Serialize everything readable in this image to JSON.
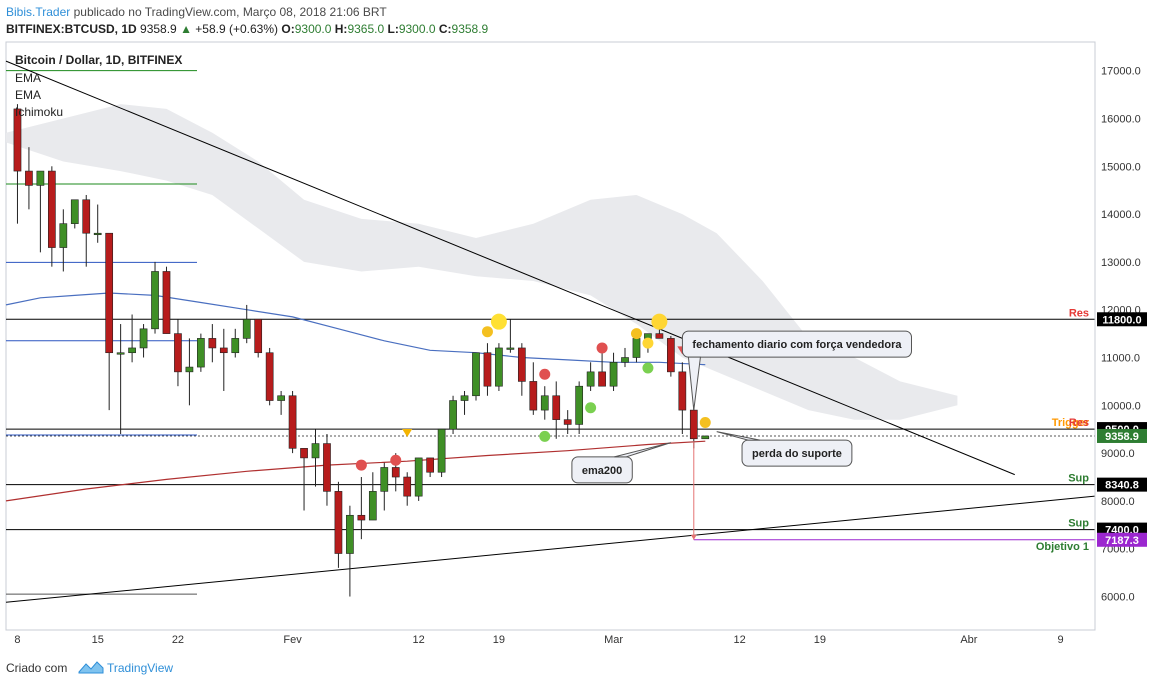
{
  "header": {
    "brand": "Bibis.Trader",
    "published": "publicado no TradingView.com, Março 08, 2018 21:06 BRT",
    "symbol": "BITFINEX:BTCUSD, 1D",
    "price": "9358.9",
    "change": "+58.9 (+0.63%)",
    "o_label": "O:",
    "o_val": "9300.0",
    "h_label": "H:",
    "h_val": "9365.0",
    "l_label": "L:",
    "l_val": "9300.0",
    "c_label": "C:",
    "c_val": "9358.9"
  },
  "footer": {
    "created": "Criado com",
    "logo_name": "TradingView"
  },
  "chart_data": {
    "type": "candlestick",
    "title": "Bitcoin / Dollar, 1D, BITFINEX",
    "indicators": [
      "EMA",
      "EMA",
      "Ichimoku"
    ],
    "ylim": [
      5300,
      17600
    ],
    "xlim": [
      "2018-01-07",
      "2018-04-12"
    ],
    "y_ticks": [
      6000,
      7000,
      8000,
      9000,
      10000,
      11000,
      12000,
      13000,
      14000,
      15000,
      16000,
      17000
    ],
    "y_tick_labels": [
      "6000.0",
      "7000.0",
      "8000.0",
      "9000.0",
      "10000.0",
      "11000.0",
      "12000.0",
      "13000.0",
      "14000.0",
      "15000.0",
      "16000.0",
      "17000.0"
    ],
    "x_ticks": [
      {
        "date": "2018-01-08",
        "label": "8"
      },
      {
        "date": "2018-01-15",
        "label": "15"
      },
      {
        "date": "2018-01-22",
        "label": "22"
      },
      {
        "date": "2018-02-01",
        "label": "Fev"
      },
      {
        "date": "2018-02-12",
        "label": "12"
      },
      {
        "date": "2018-02-19",
        "label": "19"
      },
      {
        "date": "2018-03-01",
        "label": "Mar"
      },
      {
        "date": "2018-03-12",
        "label": "12"
      },
      {
        "date": "2018-03-19",
        "label": "19"
      },
      {
        "date": "2018-04-01",
        "label": "Abr"
      },
      {
        "date": "2018-04-09",
        "label": "9"
      }
    ],
    "candles": [
      {
        "d": "2018-01-08",
        "o": 16200,
        "h": 16300,
        "l": 13800,
        "c": 14900
      },
      {
        "d": "2018-01-09",
        "o": 14900,
        "h": 15400,
        "l": 14100,
        "c": 14600
      },
      {
        "d": "2018-01-10",
        "o": 14600,
        "h": 14900,
        "l": 13200,
        "c": 14900
      },
      {
        "d": "2018-01-11",
        "o": 14900,
        "h": 15000,
        "l": 12900,
        "c": 13300
      },
      {
        "d": "2018-01-12",
        "o": 13300,
        "h": 14100,
        "l": 12800,
        "c": 13800
      },
      {
        "d": "2018-01-13",
        "o": 13800,
        "h": 14300,
        "l": 13700,
        "c": 14300
      },
      {
        "d": "2018-01-14",
        "o": 14300,
        "h": 14400,
        "l": 12900,
        "c": 13600
      },
      {
        "d": "2018-01-15",
        "o": 13600,
        "h": 14200,
        "l": 13400,
        "c": 13600
      },
      {
        "d": "2018-01-16",
        "o": 13600,
        "h": 13600,
        "l": 9900,
        "c": 11100
      },
      {
        "d": "2018-01-17",
        "o": 11100,
        "h": 11700,
        "l": 9400,
        "c": 11100
      },
      {
        "d": "2018-01-18",
        "o": 11100,
        "h": 11900,
        "l": 10900,
        "c": 11200
      },
      {
        "d": "2018-01-19",
        "o": 11200,
        "h": 11700,
        "l": 11000,
        "c": 11600
      },
      {
        "d": "2018-01-20",
        "o": 11600,
        "h": 13000,
        "l": 11500,
        "c": 12800
      },
      {
        "d": "2018-01-21",
        "o": 12800,
        "h": 12900,
        "l": 11500,
        "c": 11500
      },
      {
        "d": "2018-01-22",
        "o": 11500,
        "h": 11800,
        "l": 10400,
        "c": 10700
      },
      {
        "d": "2018-01-23",
        "o": 10700,
        "h": 11400,
        "l": 10000,
        "c": 10800
      },
      {
        "d": "2018-01-24",
        "o": 10800,
        "h": 11500,
        "l": 10700,
        "c": 11400
      },
      {
        "d": "2018-01-25",
        "o": 11400,
        "h": 11700,
        "l": 10900,
        "c": 11200
      },
      {
        "d": "2018-01-26",
        "o": 11200,
        "h": 11600,
        "l": 10300,
        "c": 11100
      },
      {
        "d": "2018-01-27",
        "o": 11100,
        "h": 11600,
        "l": 11000,
        "c": 11400
      },
      {
        "d": "2018-01-28",
        "o": 11400,
        "h": 12100,
        "l": 11300,
        "c": 11800
      },
      {
        "d": "2018-01-29",
        "o": 11800,
        "h": 11800,
        "l": 11000,
        "c": 11100
      },
      {
        "d": "2018-01-30",
        "o": 11100,
        "h": 11200,
        "l": 10000,
        "c": 10100
      },
      {
        "d": "2018-01-31",
        "o": 10100,
        "h": 10300,
        "l": 9800,
        "c": 10200
      },
      {
        "d": "2018-02-01",
        "o": 10200,
        "h": 10300,
        "l": 9000,
        "c": 9100
      },
      {
        "d": "2018-02-02",
        "o": 9100,
        "h": 9100,
        "l": 7800,
        "c": 8900
      },
      {
        "d": "2018-02-03",
        "o": 8900,
        "h": 9500,
        "l": 8300,
        "c": 9200
      },
      {
        "d": "2018-02-04",
        "o": 9200,
        "h": 9400,
        "l": 7900,
        "c": 8200
      },
      {
        "d": "2018-02-05",
        "o": 8200,
        "h": 8400,
        "l": 6600,
        "c": 6900
      },
      {
        "d": "2018-02-06",
        "o": 6900,
        "h": 7900,
        "l": 6000,
        "c": 7700
      },
      {
        "d": "2018-02-07",
        "o": 7700,
        "h": 8500,
        "l": 7200,
        "c": 7600
      },
      {
        "d": "2018-02-08",
        "o": 7600,
        "h": 8600,
        "l": 7600,
        "c": 8200
      },
      {
        "d": "2018-02-09",
        "o": 8200,
        "h": 8800,
        "l": 7800,
        "c": 8700
      },
      {
        "d": "2018-02-10",
        "o": 8700,
        "h": 9000,
        "l": 8200,
        "c": 8500
      },
      {
        "d": "2018-02-11",
        "o": 8500,
        "h": 8600,
        "l": 7900,
        "c": 8100
      },
      {
        "d": "2018-02-12",
        "o": 8100,
        "h": 8900,
        "l": 8000,
        "c": 8900
      },
      {
        "d": "2018-02-13",
        "o": 8900,
        "h": 8900,
        "l": 8500,
        "c": 8600
      },
      {
        "d": "2018-02-14",
        "o": 8600,
        "h": 9500,
        "l": 8500,
        "c": 9500
      },
      {
        "d": "2018-02-15",
        "o": 9500,
        "h": 10200,
        "l": 9400,
        "c": 10100
      },
      {
        "d": "2018-02-16",
        "o": 10100,
        "h": 10300,
        "l": 9800,
        "c": 10200
      },
      {
        "d": "2018-02-17",
        "o": 10200,
        "h": 11100,
        "l": 10100,
        "c": 11100
      },
      {
        "d": "2018-02-18",
        "o": 11100,
        "h": 11300,
        "l": 10200,
        "c": 10400
      },
      {
        "d": "2018-02-19",
        "o": 10400,
        "h": 11300,
        "l": 10300,
        "c": 11200
      },
      {
        "d": "2018-02-20",
        "o": 11200,
        "h": 11800,
        "l": 11100,
        "c": 11200
      },
      {
        "d": "2018-02-21",
        "o": 11200,
        "h": 11300,
        "l": 10200,
        "c": 10500
      },
      {
        "d": "2018-02-22",
        "o": 10500,
        "h": 10900,
        "l": 9800,
        "c": 9900
      },
      {
        "d": "2018-02-23",
        "o": 9900,
        "h": 10400,
        "l": 9700,
        "c": 10200
      },
      {
        "d": "2018-02-24",
        "o": 10200,
        "h": 10500,
        "l": 9300,
        "c": 9700
      },
      {
        "d": "2018-02-25",
        "o": 9700,
        "h": 9900,
        "l": 9400,
        "c": 9600
      },
      {
        "d": "2018-02-26",
        "o": 9600,
        "h": 10500,
        "l": 9400,
        "c": 10400
      },
      {
        "d": "2018-02-27",
        "o": 10400,
        "h": 10900,
        "l": 10300,
        "c": 10700
      },
      {
        "d": "2018-02-28",
        "o": 10700,
        "h": 11100,
        "l": 10400,
        "c": 10400
      },
      {
        "d": "2018-03-01",
        "o": 10400,
        "h": 11100,
        "l": 10300,
        "c": 10900
      },
      {
        "d": "2018-03-02",
        "o": 10900,
        "h": 11200,
        "l": 10800,
        "c": 11000
      },
      {
        "d": "2018-03-03",
        "o": 11000,
        "h": 11500,
        "l": 10900,
        "c": 11400
      },
      {
        "d": "2018-03-04",
        "o": 11400,
        "h": 11500,
        "l": 11100,
        "c": 11500
      },
      {
        "d": "2018-03-05",
        "o": 11500,
        "h": 11700,
        "l": 11400,
        "c": 11400
      },
      {
        "d": "2018-03-06",
        "o": 11400,
        "h": 11450,
        "l": 10600,
        "c": 10700
      },
      {
        "d": "2018-03-07",
        "o": 10700,
        "h": 10900,
        "l": 9400,
        "c": 9900
      },
      {
        "d": "2018-03-08",
        "o": 9900,
        "h": 10100,
        "l": 9100,
        "c": 9300
      },
      {
        "d": "2018-03-09",
        "o": 9300,
        "h": 9365,
        "l": 9300,
        "c": 9358.9
      }
    ],
    "ema_blue": [
      [
        "2018-01-07",
        12100
      ],
      [
        "2018-01-10",
        12250
      ],
      [
        "2018-01-13",
        12300
      ],
      [
        "2018-01-16",
        12350
      ],
      [
        "2018-01-20",
        12300
      ],
      [
        "2018-01-24",
        12150
      ],
      [
        "2018-01-28",
        12000
      ],
      [
        "2018-02-01",
        11850
      ],
      [
        "2018-02-05",
        11600
      ],
      [
        "2018-02-09",
        11350
      ],
      [
        "2018-02-13",
        11150
      ],
      [
        "2018-02-17",
        11100
      ],
      [
        "2018-02-21",
        11000
      ],
      [
        "2018-02-25",
        10950
      ],
      [
        "2018-03-01",
        10900
      ],
      [
        "2018-03-05",
        10900
      ],
      [
        "2018-03-09",
        10850
      ]
    ],
    "ema_red": [
      [
        "2018-01-07",
        8000
      ],
      [
        "2018-01-14",
        8250
      ],
      [
        "2018-01-21",
        8450
      ],
      [
        "2018-01-28",
        8620
      ],
      [
        "2018-02-04",
        8750
      ],
      [
        "2018-02-11",
        8830
      ],
      [
        "2018-02-18",
        8950
      ],
      [
        "2018-02-25",
        9050
      ],
      [
        "2018-03-04",
        9180
      ],
      [
        "2018-03-09",
        9250
      ]
    ],
    "cloud_top": [
      [
        "2018-01-07",
        15700
      ],
      [
        "2018-01-12",
        16000
      ],
      [
        "2018-01-17",
        16300
      ],
      [
        "2018-01-21",
        16200
      ],
      [
        "2018-01-25",
        15700
      ],
      [
        "2018-01-29",
        15100
      ],
      [
        "2018-02-02",
        14300
      ],
      [
        "2018-02-07",
        13900
      ],
      [
        "2018-02-12",
        13800
      ],
      [
        "2018-02-17",
        13500
      ],
      [
        "2018-02-22",
        13800
      ],
      [
        "2018-02-27",
        14300
      ],
      [
        "2018-03-03",
        14400
      ],
      [
        "2018-03-07",
        14000
      ],
      [
        "2018-03-10",
        13600
      ],
      [
        "2018-03-14",
        12600
      ],
      [
        "2018-03-18",
        11400
      ],
      [
        "2018-03-22",
        11000
      ],
      [
        "2018-03-26",
        10500
      ],
      [
        "2018-03-31",
        10200
      ]
    ],
    "cloud_bottom": [
      [
        "2018-01-07",
        15500
      ],
      [
        "2018-01-12",
        15100
      ],
      [
        "2018-01-17",
        14900
      ],
      [
        "2018-01-21",
        14700
      ],
      [
        "2018-01-25",
        14400
      ],
      [
        "2018-01-29",
        13700
      ],
      [
        "2018-02-02",
        13000
      ],
      [
        "2018-02-07",
        12800
      ],
      [
        "2018-02-12",
        12900
      ],
      [
        "2018-02-17",
        12700
      ],
      [
        "2018-02-22",
        12600
      ],
      [
        "2018-02-27",
        12300
      ],
      [
        "2018-03-03",
        11700
      ],
      [
        "2018-03-07",
        11000
      ],
      [
        "2018-03-10",
        10700
      ],
      [
        "2018-03-14",
        10300
      ],
      [
        "2018-03-18",
        9900
      ],
      [
        "2018-03-22",
        9700
      ],
      [
        "2018-03-26",
        9700
      ],
      [
        "2018-03-31",
        10000
      ]
    ],
    "trendlines": [
      {
        "name": "descending",
        "from": [
          "2018-01-07",
          17200
        ],
        "to": [
          "2018-04-05",
          8550
        ],
        "color": "#000000"
      },
      {
        "name": "ascending",
        "from": [
          "2018-01-07",
          5880
        ],
        "to": [
          "2018-04-12",
          8100
        ],
        "color": "#000000"
      }
    ],
    "horizontal_levels": [
      {
        "value": 11800.0,
        "label": "Res",
        "label_color": "#e53935",
        "badge": "11800.0",
        "badge_bg": "#000000"
      },
      {
        "value": 9501.3,
        "label": "Trigger",
        "label_color": "#ff9800",
        "badge": "9501.3",
        "badge_bg": "#000000",
        "extra_label": "Res",
        "extra_color": "#e53935"
      },
      {
        "value": 8340.8,
        "label": "Sup",
        "label_color": "#2e7d32",
        "badge": "8340.8",
        "badge_bg": "#000000"
      },
      {
        "value": 7400.0,
        "label": "Sup",
        "label_color": "#2e7d32",
        "badge": "7400.0",
        "badge_bg": "#000000"
      }
    ],
    "target_level": {
      "value": 7187.3,
      "label": "Objetivo 1",
      "label_color": "#2e7d32",
      "badge": "7187.3",
      "badge_bg": "#9b27cf",
      "line_color": "#9b27cf"
    },
    "price_badges": [
      {
        "value": 9500.0,
        "text": "9500.0",
        "bg": "#000000"
      },
      {
        "value": 9358.9,
        "text": "9358.9",
        "bg": "#2e7d32"
      }
    ],
    "dashed_level": 9358.9,
    "left_lines": [
      {
        "value": 17000,
        "color": "#1b8a1b"
      },
      {
        "value": 14630,
        "color": "#1b8a1b"
      },
      {
        "value": 12990,
        "color": "#2b55c0"
      },
      {
        "value": 11350,
        "color": "#2b55c0"
      },
      {
        "value": 9380,
        "color": "#2b55c0"
      },
      {
        "value": 6050,
        "color": "#555555"
      }
    ],
    "markers": [
      {
        "d": "2018-02-19",
        "v": 11750,
        "color": "#ffe033",
        "big": true
      },
      {
        "d": "2018-02-18",
        "v": 11540,
        "color": "#f4c020"
      },
      {
        "d": "2018-03-05",
        "v": 11750,
        "color": "#ffd633",
        "big": true
      },
      {
        "d": "2018-03-03",
        "v": 11500,
        "color": "#f4c020"
      },
      {
        "d": "2018-03-04",
        "v": 11300,
        "color": "#ffd633"
      },
      {
        "d": "2018-03-09",
        "v": 9640,
        "color": "#f4c020"
      },
      {
        "d": "2018-02-07",
        "v": 8750,
        "color": "#e05050"
      },
      {
        "d": "2018-02-10",
        "v": 8850,
        "color": "#e05050"
      },
      {
        "d": "2018-02-23",
        "v": 10650,
        "color": "#e05050"
      },
      {
        "d": "2018-02-28",
        "v": 11200,
        "color": "#e05050"
      },
      {
        "d": "2018-02-23",
        "v": 9350,
        "color": "#7ad050"
      },
      {
        "d": "2018-02-27",
        "v": 9950,
        "color": "#7ad050"
      },
      {
        "d": "2018-03-04",
        "v": 10780,
        "color": "#7ad050"
      }
    ],
    "triangles": [
      {
        "d": "2018-02-11",
        "v": 9420,
        "color": "#f4b400"
      },
      {
        "d": "2018-03-07",
        "v": 11150,
        "color": "#e05050"
      }
    ],
    "projection": {
      "d": "2018-03-08",
      "from": 9250,
      "to": 7187.3,
      "color": "#e57373"
    },
    "annotations": [
      {
        "text": "fechamento diario com força vendedora",
        "box_at": [
          "2018-03-17",
          11280
        ],
        "pointer_to": [
          "2018-03-08",
          9900
        ]
      },
      {
        "text": "perda do suporte",
        "box_at": [
          "2018-03-17",
          9000
        ],
        "pointer_to": [
          "2018-03-10",
          9450
        ]
      },
      {
        "text": "ema200",
        "box_at": [
          "2018-02-28",
          8650
        ],
        "pointer_to": [
          "2018-03-06",
          9220
        ]
      }
    ]
  }
}
